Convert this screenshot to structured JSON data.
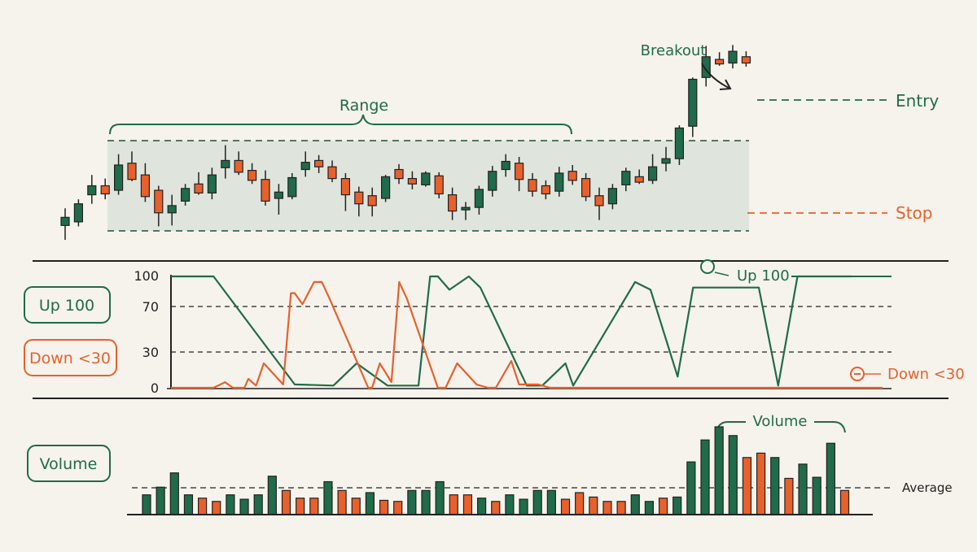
{
  "colors": {
    "green": "#1f6b4a",
    "orange": "#e8602c",
    "range_fill": "#dfe5dc",
    "ink": "#222222",
    "background": "#f6f3ec"
  },
  "price_panel": {
    "range_label": "Range",
    "breakout_label": "Breakout",
    "entry_label": "Entry",
    "stop_label": "Stop"
  },
  "oscillator_panel": {
    "up_box_label": "Up 100",
    "down_box_label": "Down <30",
    "up_callout": "Up 100",
    "down_callout": "Down <30",
    "y_ticks": [
      "100",
      "70",
      "30",
      "0"
    ]
  },
  "volume_panel": {
    "box_label": "Volume",
    "bracket_label": "Volume",
    "average_label": "Average"
  },
  "chart_data": [
    {
      "type": "candlestick",
      "title": "",
      "range_top": 100,
      "range_bottom": 0,
      "entry_level": 134,
      "stop_level": 20,
      "grid": false,
      "candles": [
        {
          "open": 6,
          "high": 25,
          "low": -10,
          "close": 15,
          "dir": "up"
        },
        {
          "open": 10,
          "high": 35,
          "low": 5,
          "close": 30,
          "dir": "up"
        },
        {
          "open": 40,
          "high": 62,
          "low": 30,
          "close": 50,
          "dir": "up"
        },
        {
          "open": 50,
          "high": 58,
          "low": 35,
          "close": 41,
          "dir": "down"
        },
        {
          "open": 45,
          "high": 85,
          "low": 40,
          "close": 73,
          "dir": "up"
        },
        {
          "open": 75,
          "high": 88,
          "low": 55,
          "close": 57,
          "dir": "down"
        },
        {
          "open": 62,
          "high": 75,
          "low": 32,
          "close": 38,
          "dir": "down"
        },
        {
          "open": 45,
          "high": 50,
          "low": 5,
          "close": 20,
          "dir": "down"
        },
        {
          "open": 20,
          "high": 40,
          "low": 6,
          "close": 28,
          "dir": "up"
        },
        {
          "open": 33,
          "high": 52,
          "low": 28,
          "close": 47,
          "dir": "up"
        },
        {
          "open": 52,
          "high": 65,
          "low": 40,
          "close": 42,
          "dir": "down"
        },
        {
          "open": 42,
          "high": 70,
          "low": 35,
          "close": 62,
          "dir": "up"
        },
        {
          "open": 70,
          "high": 95,
          "low": 58,
          "close": 78,
          "dir": "up"
        },
        {
          "open": 78,
          "high": 88,
          "low": 62,
          "close": 65,
          "dir": "down"
        },
        {
          "open": 67,
          "high": 75,
          "low": 52,
          "close": 56,
          "dir": "down"
        },
        {
          "open": 57,
          "high": 67,
          "low": 28,
          "close": 33,
          "dir": "down"
        },
        {
          "open": 36,
          "high": 52,
          "low": 18,
          "close": 43,
          "dir": "up"
        },
        {
          "open": 38,
          "high": 64,
          "low": 35,
          "close": 59,
          "dir": "up"
        },
        {
          "open": 68,
          "high": 88,
          "low": 60,
          "close": 76,
          "dir": "up"
        },
        {
          "open": 78,
          "high": 84,
          "low": 64,
          "close": 71,
          "dir": "down"
        },
        {
          "open": 71,
          "high": 78,
          "low": 54,
          "close": 58,
          "dir": "down"
        },
        {
          "open": 58,
          "high": 64,
          "low": 22,
          "close": 40,
          "dir": "down"
        },
        {
          "open": 43,
          "high": 49,
          "low": 16,
          "close": 30,
          "dir": "down"
        },
        {
          "open": 39,
          "high": 48,
          "low": 16,
          "close": 28,
          "dir": "down"
        },
        {
          "open": 36,
          "high": 62,
          "low": 32,
          "close": 60,
          "dir": "up"
        },
        {
          "open": 68,
          "high": 74,
          "low": 52,
          "close": 58,
          "dir": "down"
        },
        {
          "open": 58,
          "high": 66,
          "low": 46,
          "close": 52,
          "dir": "down"
        },
        {
          "open": 51,
          "high": 66,
          "low": 49,
          "close": 64,
          "dir": "up"
        },
        {
          "open": 61,
          "high": 65,
          "low": 36,
          "close": 41,
          "dir": "down"
        },
        {
          "open": 40,
          "high": 48,
          "low": 12,
          "close": 22,
          "dir": "down"
        },
        {
          "open": 26,
          "high": 32,
          "low": 12,
          "close": 24,
          "dir": "up"
        },
        {
          "open": 26,
          "high": 50,
          "low": 18,
          "close": 46,
          "dir": "up"
        },
        {
          "open": 45,
          "high": 72,
          "low": 38,
          "close": 66,
          "dir": "up"
        },
        {
          "open": 68,
          "high": 85,
          "low": 60,
          "close": 77,
          "dir": "up"
        },
        {
          "open": 75,
          "high": 82,
          "low": 44,
          "close": 57,
          "dir": "down"
        },
        {
          "open": 57,
          "high": 64,
          "low": 38,
          "close": 44,
          "dir": "down"
        },
        {
          "open": 50,
          "high": 56,
          "low": 35,
          "close": 41,
          "dir": "down"
        },
        {
          "open": 44,
          "high": 71,
          "low": 38,
          "close": 64,
          "dir": "up"
        },
        {
          "open": 66,
          "high": 73,
          "low": 51,
          "close": 56,
          "dir": "down"
        },
        {
          "open": 58,
          "high": 64,
          "low": 33,
          "close": 38,
          "dir": "down"
        },
        {
          "open": 39,
          "high": 48,
          "low": 12,
          "close": 28,
          "dir": "down"
        },
        {
          "open": 30,
          "high": 52,
          "low": 24,
          "close": 47,
          "dir": "up"
        },
        {
          "open": 51,
          "high": 70,
          "low": 44,
          "close": 66,
          "dir": "up"
        },
        {
          "open": 60,
          "high": 68,
          "low": 52,
          "close": 54,
          "dir": "down"
        },
        {
          "open": 56,
          "high": 85,
          "low": 52,
          "close": 71,
          "dir": "up"
        },
        {
          "open": 75,
          "high": 93,
          "low": 66,
          "close": 80,
          "dir": "up"
        },
        {
          "open": 80,
          "high": 117,
          "low": 73,
          "close": 114,
          "dir": "up"
        },
        {
          "open": 116,
          "high": 170,
          "low": 104,
          "close": 168,
          "dir": "up"
        },
        {
          "open": 170,
          "high": 205,
          "low": 160,
          "close": 193,
          "dir": "up"
        },
        {
          "open": 190,
          "high": 198,
          "low": 183,
          "close": 185,
          "dir": "down"
        },
        {
          "open": 186,
          "high": 206,
          "low": 180,
          "close": 199,
          "dir": "up"
        },
        {
          "open": 193,
          "high": 199,
          "low": 182,
          "close": 186,
          "dir": "down"
        }
      ]
    },
    {
      "type": "line",
      "title": "",
      "ylim": [
        0,
        100
      ],
      "y_ticks": [
        100,
        70,
        30,
        0
      ],
      "reference_lines": [
        70,
        30
      ],
      "grid": false,
      "series": [
        {
          "color": "green",
          "x": [
            0,
            5.5,
            16,
            21,
            24,
            28,
            32,
            33.5,
            34.5,
            36,
            38.5,
            40,
            46,
            48,
            51,
            52,
            60,
            62,
            65.5,
            67.5,
            76,
            78.5,
            81,
            88
          ],
          "y": [
            100,
            100,
            3,
            2,
            22,
            2,
            2,
            100,
            100,
            88,
            100,
            90,
            2,
            2,
            22,
            2,
            95,
            88,
            10,
            90,
            90,
            2,
            100,
            100
          ]
        },
        {
          "color": "orange",
          "x": [
            0,
            3.5,
            4.5,
            5.5,
            7,
            8,
            9.5,
            10,
            11,
            12,
            14.5,
            15.5,
            16,
            17,
            18.5,
            19.5,
            20.5,
            25.5,
            26,
            27,
            28.5,
            29.5,
            30.5,
            34.5,
            35.5,
            37,
            39.5,
            41,
            42,
            44,
            45,
            47.5,
            49,
            50,
            51.5,
            54,
            56,
            57,
            58,
            59,
            60.5,
            62,
            63,
            64,
            65,
            66,
            66.5,
            68,
            71,
            73,
            75,
            77,
            78.5,
            80,
            81.5,
            83,
            85,
            87,
            88,
            89.5,
            90.5,
            92
          ],
          "y": [
            0,
            0,
            0,
            0,
            5,
            0,
            0,
            8,
            2,
            22,
            3,
            85,
            85,
            75,
            95,
            95,
            80,
            0,
            0,
            22,
            5,
            95,
            80,
            0,
            0,
            22,
            3,
            0,
            0,
            24,
            3,
            3,
            0,
            0,
            0,
            0,
            0,
            0,
            0,
            0,
            0,
            0,
            0,
            0,
            0,
            0,
            0,
            0,
            0,
            0,
            0,
            0,
            0,
            0,
            0,
            0,
            0,
            0,
            0,
            0,
            0,
            0
          ]
        }
      ]
    },
    {
      "type": "bar",
      "title": "",
      "average": 25,
      "grid": false,
      "values": [
        18,
        25,
        38,
        18,
        15,
        12,
        18,
        14,
        18,
        35,
        22,
        15,
        15,
        30,
        22,
        15,
        20,
        13,
        12,
        22,
        22,
        30,
        18,
        18,
        15,
        12,
        18,
        14,
        22,
        22,
        14,
        20,
        16,
        12,
        12,
        18,
        12,
        15,
        16,
        48,
        68,
        80,
        72,
        52,
        56,
        52,
        33,
        46,
        34,
        65,
        22
      ],
      "colors": [
        "green",
        "green",
        "green",
        "green",
        "orange",
        "orange",
        "green",
        "green",
        "green",
        "green",
        "orange",
        "orange",
        "orange",
        "green",
        "orange",
        "orange",
        "green",
        "orange",
        "orange",
        "green",
        "green",
        "green",
        "orange",
        "orange",
        "green",
        "orange",
        "green",
        "green",
        "green",
        "green",
        "orange",
        "orange",
        "orange",
        "orange",
        "orange",
        "green",
        "green",
        "orange",
        "green",
        "green",
        "green",
        "green",
        "green",
        "orange",
        "orange",
        "green",
        "orange",
        "green",
        "green",
        "green",
        "orange"
      ]
    }
  ]
}
